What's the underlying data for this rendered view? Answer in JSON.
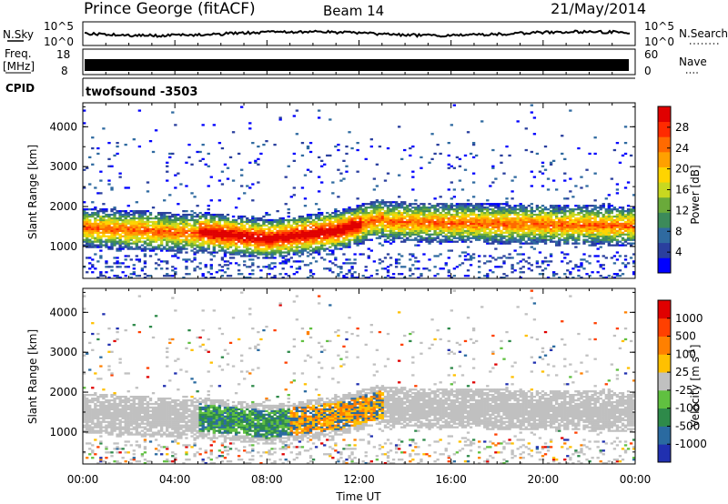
{
  "header": {
    "station": "Prince George (fitACF)",
    "beam": "Beam 14",
    "date": "21/May/2014"
  },
  "strips": {
    "nsky_label": "N.Sky",
    "nsearch_label": "N.Search",
    "noise_ticks_left": [
      "10^5",
      "10^0"
    ],
    "noise_ticks_right": [
      "10^5",
      "10^0"
    ],
    "freq_label": "Freq.",
    "freq_unit": "[MHz]",
    "freq_ticks": [
      "18",
      "8"
    ],
    "nave_ticks": [
      "60",
      "0"
    ],
    "nave_label": "Nave",
    "cpid_label": "CPID",
    "cpid_value": "twofsound -3503"
  },
  "chart_data": [
    {
      "type": "heatmap",
      "name": "power-panel",
      "ylabel": "Slant Range [km]",
      "ylim": [
        200,
        4600
      ],
      "y_ticks": [
        "4000",
        "3000",
        "2000",
        "1000"
      ],
      "y_tick_values": [
        4000,
        3000,
        2000,
        1000
      ],
      "colorbar": {
        "label": "Power [dB]",
        "ticks": [
          "28",
          "24",
          "20",
          "16",
          "12",
          "8",
          "4"
        ],
        "tick_values": [
          28,
          24,
          20,
          16,
          12,
          8,
          4
        ],
        "range": [
          0,
          32
        ],
        "colors": [
          "#0000ff",
          "#2a3f9e",
          "#2f6aa0",
          "#3c8a5a",
          "#6aaa3a",
          "#c8d820",
          "#ffd400",
          "#ffa000",
          "#ff6a00",
          "#ff2a00",
          "#e00000"
        ]
      }
    },
    {
      "type": "heatmap",
      "name": "velocity-panel",
      "ylabel": "Slant Range [km]",
      "ylim": [
        200,
        4600
      ],
      "y_ticks": [
        "4000",
        "3000",
        "2000",
        "1000"
      ],
      "y_tick_values": [
        4000,
        3000,
        2000,
        1000
      ],
      "colorbar": {
        "label": "Velocity [m s^-1]",
        "ticks": [
          "1000",
          "500",
          "100",
          "25",
          "-25",
          "-100",
          "-500",
          "-1000"
        ],
        "colors": [
          "#2030b0",
          "#2a6aa0",
          "#2e8a4a",
          "#60c040",
          "#c0c0c0",
          "#ffc000",
          "#ff8000",
          "#ff4000",
          "#e00000"
        ]
      }
    }
  ],
  "x_axis": {
    "xlabel": "Time UT",
    "xlim": [
      0,
      24
    ],
    "ticks": [
      "00:00",
      "04:00",
      "08:00",
      "12:00",
      "16:00",
      "20:00",
      "00:00"
    ],
    "tick_values": [
      0,
      4,
      8,
      12,
      16,
      20,
      24
    ]
  }
}
